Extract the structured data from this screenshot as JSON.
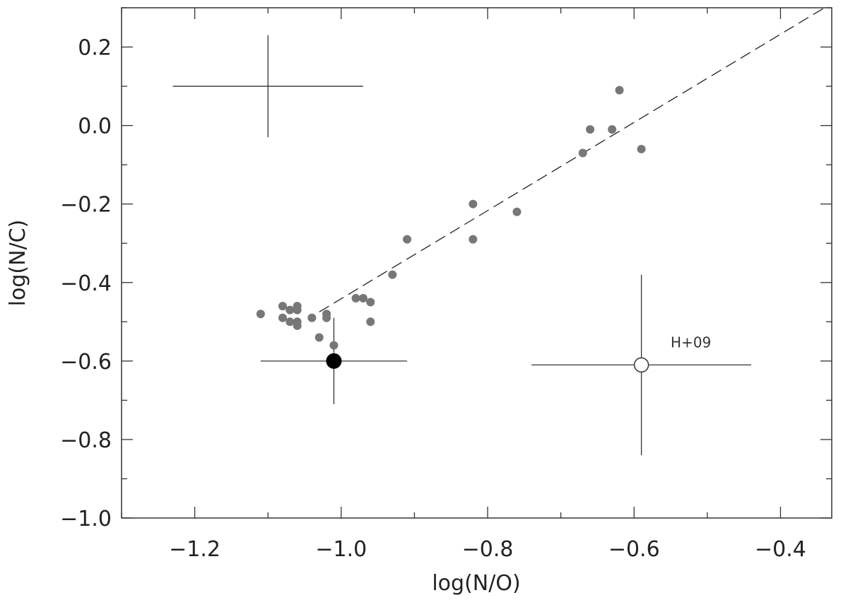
{
  "chart_data": {
    "type": "scatter",
    "xlabel": "log(N/O)",
    "ylabel": "log(N/C)",
    "xlim": [
      -1.3,
      -0.33
    ],
    "ylim": [
      -1.0,
      0.3
    ],
    "x_ticks": [
      -1.2,
      -1.0,
      -0.8,
      -0.6,
      -0.4
    ],
    "x_tick_labels": [
      "−1.2",
      "−1.0",
      "−0.8",
      "−0.6",
      "−0.4"
    ],
    "y_ticks": [
      -1.0,
      -0.8,
      -0.6,
      -0.4,
      -0.2,
      0.0,
      0.2
    ],
    "y_tick_labels": [
      "−1.0",
      "−0.8",
      "−0.6",
      "−0.4",
      "−0.2",
      "0.0",
      "0.2"
    ],
    "grid": false,
    "series": [
      {
        "marker": "filled-circle-small",
        "color": "#777777",
        "points": [
          {
            "x": -1.11,
            "y": -0.48
          },
          {
            "x": -1.08,
            "y": -0.46
          },
          {
            "x": -1.08,
            "y": -0.49
          },
          {
            "x": -1.07,
            "y": -0.47
          },
          {
            "x": -1.07,
            "y": -0.5
          },
          {
            "x": -1.06,
            "y": -0.46
          },
          {
            "x": -1.06,
            "y": -0.47
          },
          {
            "x": -1.06,
            "y": -0.5
          },
          {
            "x": -1.06,
            "y": -0.51
          },
          {
            "x": -1.04,
            "y": -0.49
          },
          {
            "x": -1.03,
            "y": -0.54
          },
          {
            "x": -1.02,
            "y": -0.48
          },
          {
            "x": -1.02,
            "y": -0.49
          },
          {
            "x": -1.01,
            "y": -0.56
          },
          {
            "x": -0.98,
            "y": -0.44
          },
          {
            "x": -0.97,
            "y": -0.44
          },
          {
            "x": -0.96,
            "y": -0.45
          },
          {
            "x": -0.96,
            "y": -0.5
          },
          {
            "x": -0.93,
            "y": -0.38
          },
          {
            "x": -0.91,
            "y": -0.29
          },
          {
            "x": -0.82,
            "y": -0.2
          },
          {
            "x": -0.82,
            "y": -0.29
          },
          {
            "x": -0.76,
            "y": -0.22
          },
          {
            "x": -0.67,
            "y": -0.07
          },
          {
            "x": -0.66,
            "y": -0.01
          },
          {
            "x": -0.63,
            "y": -0.01
          },
          {
            "x": -0.62,
            "y": 0.09
          },
          {
            "x": -0.59,
            "y": -0.06
          }
        ]
      },
      {
        "marker": "filled-circle-large",
        "color": "#000000",
        "points": [
          {
            "x": -1.01,
            "y": -0.6,
            "xerr": 0.1,
            "yerr": 0.11
          }
        ]
      },
      {
        "marker": "open-circle",
        "color": "#333333",
        "points": [
          {
            "x": -0.59,
            "y": -0.61,
            "xerr": 0.15,
            "yerr": 0.23
          }
        ]
      }
    ],
    "fit_line": {
      "style": "dashed",
      "x": [
        -1.03,
        -0.34
      ],
      "y": [
        -0.475,
        0.3
      ]
    },
    "error_cross": {
      "x": -1.1,
      "y": 0.1,
      "xerr": 0.13,
      "yerr": 0.13
    },
    "annotations": [
      {
        "text": "H+09",
        "x": -0.55,
        "y": -0.565
      }
    ]
  }
}
